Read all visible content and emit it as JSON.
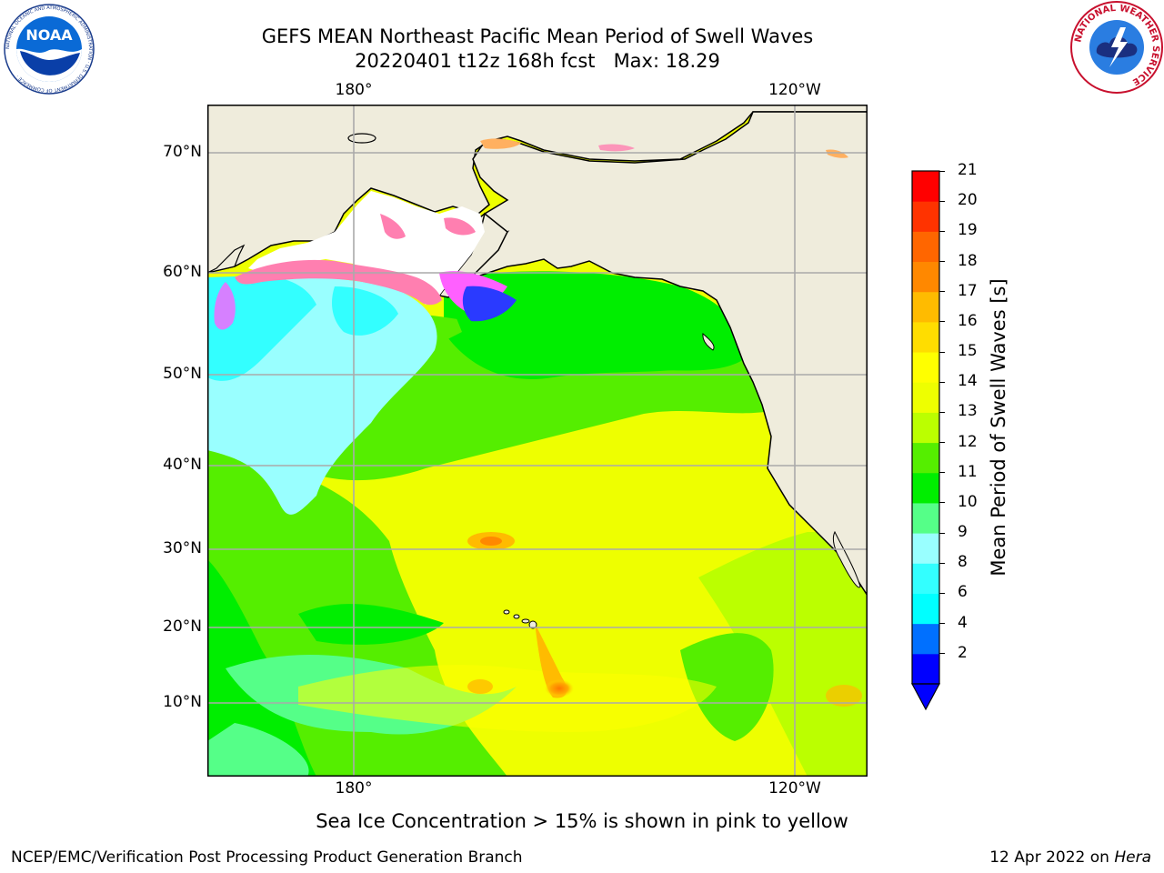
{
  "title": {
    "line1": "GEFS MEAN Northeast Pacific Mean Period of Swell Waves",
    "line2": "20220401 t12z 168h fcst   Max: 18.29"
  },
  "map": {
    "lon_labels_top": [
      "180°",
      "120°W"
    ],
    "lon_labels_bottom": [
      "180°",
      "120°W"
    ],
    "lat_labels": [
      "70°N",
      "60°N",
      "50°N",
      "40°N",
      "30°N",
      "20°N",
      "10°N"
    ],
    "land_color": "#efecdc",
    "ice_colors": [
      "#ff7fb0",
      "#ffb060",
      "#ff60ff"
    ]
  },
  "colorbar": {
    "label": "Mean Period of Swell Waves [s]",
    "ticks": [
      "21",
      "20",
      "19",
      "18",
      "17",
      "16",
      "15",
      "14",
      "13",
      "12",
      "11",
      "10",
      "9",
      "8",
      "6",
      "4",
      "2"
    ],
    "colors": [
      "#0000ff",
      "#0070ff",
      "#00ffff",
      "#33ffff",
      "#99ffff",
      "#55ff88",
      "#00ee00",
      "#55ee00",
      "#bbff00",
      "#eeff00",
      "#ffff00",
      "#ffdd00",
      "#ffbb00",
      "#ff8800",
      "#ff6600",
      "#ff3300",
      "#ff0000"
    ]
  },
  "caption": "Sea Ice Concentration > 15% is shown in pink to yellow",
  "footer": {
    "left": "NCEP/EMC/Verification Post Processing Product Generation Branch",
    "right_date": "12 Apr 2022 on ",
    "right_machine": "Hera"
  },
  "logos": {
    "noaa_text": "NOAA",
    "noaa_ring": "NATIONAL OCEANIC AND ATMOSPHERIC ADMINISTRATION · U.S. DEPARTMENT OF COMMERCE ·",
    "nws_ring": "NATIONAL WEATHER SERVICE"
  }
}
